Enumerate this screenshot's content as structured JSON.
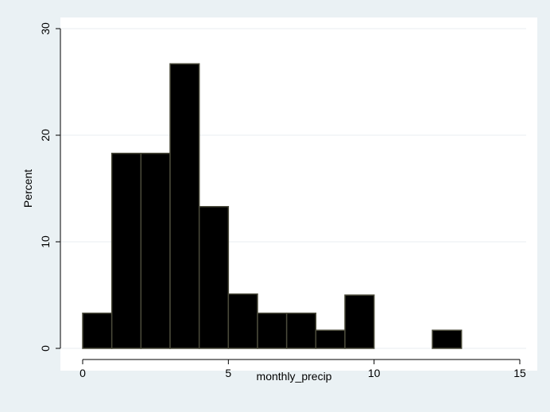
{
  "chart_data": {
    "type": "bar",
    "subtype": "histogram",
    "xlabel": "monthly_precip",
    "ylabel": "Percent",
    "xlim": [
      0,
      15
    ],
    "ylim": [
      0,
      30
    ],
    "xticks": [
      "0",
      "5",
      "10",
      "15"
    ],
    "yticks": [
      "0",
      "10",
      "20",
      "30"
    ],
    "grid": true,
    "bin_width": 1,
    "bins": [
      {
        "x0": 0,
        "x1": 1,
        "value": 3.3
      },
      {
        "x0": 1,
        "x1": 2,
        "value": 18.3
      },
      {
        "x0": 2,
        "x1": 3,
        "value": 18.3
      },
      {
        "x0": 3,
        "x1": 4,
        "value": 26.7
      },
      {
        "x0": 4,
        "x1": 5,
        "value": 13.3
      },
      {
        "x0": 5,
        "x1": 6,
        "value": 5.1
      },
      {
        "x0": 6,
        "x1": 7,
        "value": 3.3
      },
      {
        "x0": 7,
        "x1": 8,
        "value": 3.3
      },
      {
        "x0": 8,
        "x1": 9,
        "value": 1.7
      },
      {
        "x0": 9,
        "x1": 10,
        "value": 5.0
      },
      {
        "x0": 12,
        "x1": 13,
        "value": 1.7
      }
    ],
    "colors": {
      "bar_fill": "#000000",
      "bar_edge": "#4a4a3a",
      "plot_bg": "#ffffff",
      "frame_bg": "#eaf1f4",
      "grid": "#e8eef2"
    }
  }
}
